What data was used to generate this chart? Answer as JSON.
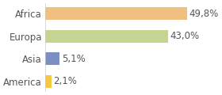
{
  "categories": [
    "Africa",
    "Europa",
    "Asia",
    "America"
  ],
  "values": [
    49.8,
    43.0,
    5.1,
    2.1
  ],
  "labels": [
    "49,8%",
    "43,0%",
    "5,1%",
    "2,1%"
  ],
  "bar_colors": [
    "#f0c080",
    "#c5d490",
    "#7b8fc4",
    "#f5c842"
  ],
  "background_color": "#ffffff",
  "xlim": [
    0,
    60
  ],
  "bar_height": 0.55,
  "label_fontsize": 8.5,
  "tick_fontsize": 8.5
}
